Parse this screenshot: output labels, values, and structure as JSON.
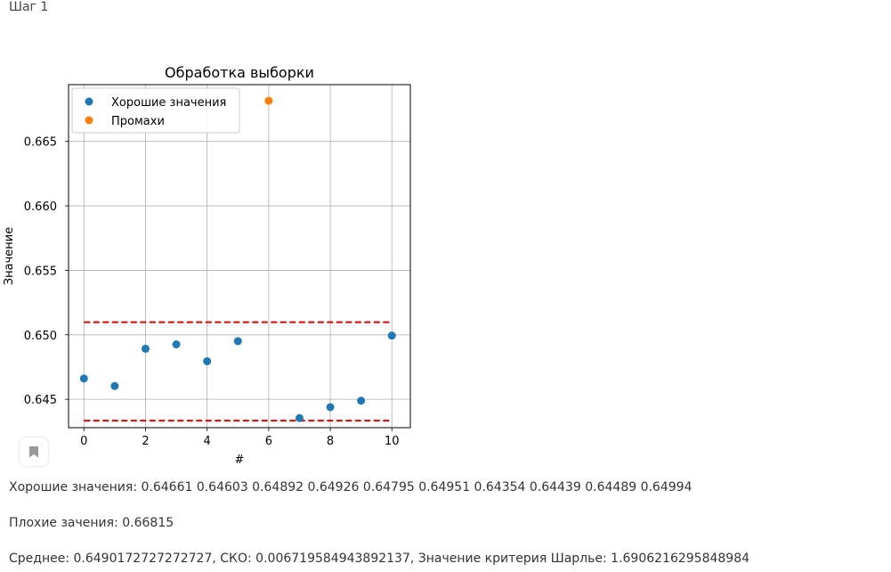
{
  "step": {
    "title": "Шаг 1"
  },
  "chart_data": {
    "type": "scatter",
    "title": "Обработка выборки",
    "xlabel": "#",
    "ylabel": "Значение",
    "xlim": [
      -0.5,
      10.6
    ],
    "ylim": [
      0.6428,
      0.6694
    ],
    "x_ticks": [
      0,
      2,
      4,
      6,
      8,
      10
    ],
    "y_ticks": [
      0.645,
      0.65,
      0.655,
      0.66,
      0.665
    ],
    "x_tick_labels": [
      "0",
      "2",
      "4",
      "6",
      "8",
      "10"
    ],
    "y_tick_labels": [
      "0.645",
      "0.650",
      "0.655",
      "0.660",
      "0.665"
    ],
    "grid": true,
    "legend": "upper-left",
    "series": [
      {
        "name": "Хорошие значения",
        "color": "#1f77b4",
        "x": [
          0,
          1,
          2,
          3,
          4,
          5,
          7,
          8,
          9,
          10
        ],
        "y": [
          0.64661,
          0.64603,
          0.64892,
          0.64926,
          0.64795,
          0.64951,
          0.64354,
          0.64439,
          0.64489,
          0.64994
        ]
      },
      {
        "name": "Промахи",
        "color": "#ff7f0e",
        "x": [
          6
        ],
        "y": [
          0.66815
        ]
      }
    ],
    "hlines": [
      {
        "y": 0.65098,
        "color": "#dd0000",
        "style": "dashed",
        "xmin": 0,
        "xmax": 10
      },
      {
        "y": 0.64334,
        "color": "#dd0000",
        "style": "dashed",
        "xmin": 0,
        "xmax": 10
      }
    ]
  },
  "output": {
    "good_values": "Хорошие значения: 0.64661 0.64603 0.64892 0.64926 0.64795 0.64951 0.64354 0.64439 0.64489 0.64994",
    "bad_values": "Плохие зачения: 0.66815",
    "stats": "Среднее: 0.6490172727272727, СКО: 0.006719584943892137, Значение критерия Шарлье: 1.6906216295848984"
  },
  "icons": {
    "bookmark": "bookmark-icon"
  }
}
